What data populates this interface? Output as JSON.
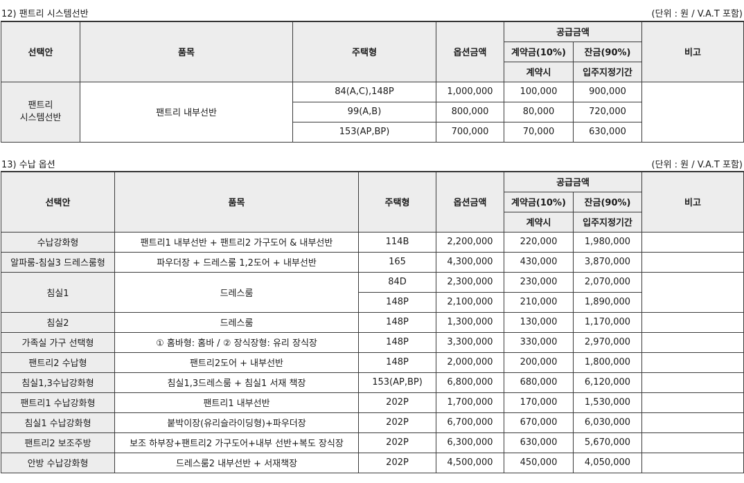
{
  "sections": [
    {
      "title": "12) 팬트리 시스템선반",
      "unit": "(단위 : 원 / V.A.T 포함)",
      "headers": {
        "option": "선택안",
        "item": "품목",
        "house_type": "주택형",
        "option_price": "옵션금액",
        "supply_amount": "공급금액",
        "deposit": "계약금(10%)",
        "balance": "잔금(90%)",
        "deposit_timing": "계약시",
        "balance_timing": "입주지정기간",
        "remarks": "비고"
      },
      "group_option": "팬트리\n시스템선반",
      "group_item": "팬트리 내부선반",
      "rows": [
        {
          "type": "84(A,C),148P",
          "price": "1,000,000",
          "deposit": "100,000",
          "balance": "900,000"
        },
        {
          "type": "99(A,B)",
          "price": "800,000",
          "deposit": "80,000",
          "balance": "720,000"
        },
        {
          "type": "153(AP,BP)",
          "price": "700,000",
          "deposit": "70,000",
          "balance": "630,000"
        }
      ]
    },
    {
      "title": "13) 수납 옵션",
      "unit": "(단위 : 원 / V.A.T 포함)",
      "headers": {
        "option": "선택안",
        "item": "품목",
        "house_type": "주택형",
        "option_price": "옵션금액",
        "supply_amount": "공급금액",
        "deposit": "계약금(10%)",
        "balance": "잔금(90%)",
        "deposit_timing": "계약시",
        "balance_timing": "입주지정기간",
        "remarks": "비고"
      },
      "rows": [
        {
          "option": "수납강화형",
          "item": "팬트리1 내부선반 + 팬트리2 가구도어 & 내부선반",
          "type": "114B",
          "price": "2,200,000",
          "deposit": "220,000",
          "balance": "1,980,000"
        },
        {
          "option": "알파룸-침실3 드레스룸형",
          "item": "파우더장 + 드레스룸 1,2도어 + 내부선반",
          "type": "165",
          "price": "4,300,000",
          "deposit": "430,000",
          "balance": "3,870,000"
        },
        {
          "option": "침실1",
          "item": "드레스룸",
          "type": "84D",
          "price": "2,300,000",
          "deposit": "230,000",
          "balance": "2,070,000"
        },
        {
          "type": "148P",
          "price": "2,100,000",
          "deposit": "210,000",
          "balance": "1,890,000"
        },
        {
          "option": "침실2",
          "item": "드레스룸",
          "type": "148P",
          "price": "1,300,000",
          "deposit": "130,000",
          "balance": "1,170,000"
        },
        {
          "option": "가족실 가구 선택형",
          "item": "① 홈바형: 홈바 / ② 장식장형: 유리 장식장",
          "type": "148P",
          "price": "3,300,000",
          "deposit": "330,000",
          "balance": "2,970,000"
        },
        {
          "option": "팬트리2 수납형",
          "item": "팬트리2도어 + 내부선반",
          "type": "148P",
          "price": "2,000,000",
          "deposit": "200,000",
          "balance": "1,800,000"
        },
        {
          "option": "침실1,3수납강화형",
          "item": "침실1,3드레스룸 + 침실1 서재 책장",
          "type": "153(AP,BP)",
          "price": "6,800,000",
          "deposit": "680,000",
          "balance": "6,120,000"
        },
        {
          "option": "팬트리1 수납강화형",
          "item": "팬트리1 내부선반",
          "type": "202P",
          "price": "1,700,000",
          "deposit": "170,000",
          "balance": "1,530,000"
        },
        {
          "option": "침실1 수납강화형",
          "item": "붙박이장(유리슬라이딩형)+파우더장",
          "type": "202P",
          "price": "6,700,000",
          "deposit": "670,000",
          "balance": "6,030,000"
        },
        {
          "option": "팬트리2 보조주방",
          "item": "보조 하부장+팬트리2 가구도어+내부 선반+복도 장식장",
          "type": "202P",
          "price": "6,300,000",
          "deposit": "630,000",
          "balance": "5,670,000"
        },
        {
          "option": "안방 수납강화형",
          "item": "드레스룸2 내부선반 + 서재책장",
          "type": "202P",
          "price": "4,500,000",
          "deposit": "450,000",
          "balance": "4,050,000"
        }
      ]
    }
  ]
}
